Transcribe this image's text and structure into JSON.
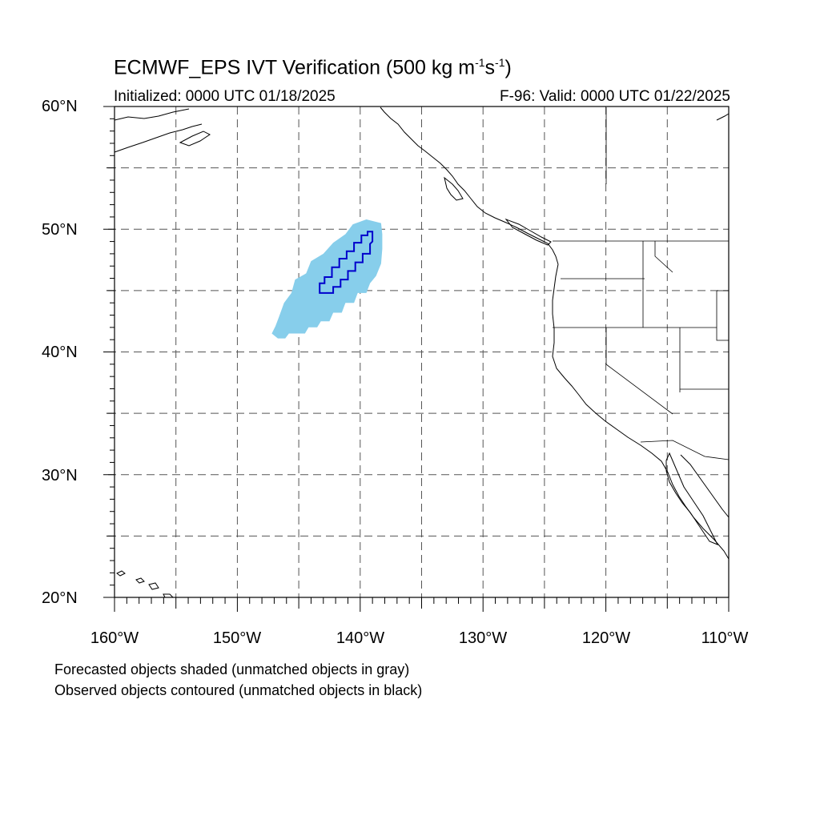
{
  "title_main": "ECMWF_EPS IVT Verification (500 kg m",
  "title_sup1": "-1",
  "title_mid": "s",
  "title_sup2": "-1",
  "title_end": ")",
  "initialized": "Initialized: 0000 UTC 01/18/2025",
  "valid": "F-96: Valid: 0000 UTC 01/22/2025",
  "map": {
    "lon_range": [
      -160,
      -110
    ],
    "lat_range": [
      20,
      60
    ],
    "grid_step_deg": 5,
    "grid_style": "dashed",
    "lat_labels": [
      "60°N",
      "50°N",
      "40°N",
      "30°N",
      "20°N"
    ],
    "lon_labels": [
      "160°W",
      "150°W",
      "140°W",
      "130°W",
      "120°W",
      "110°W"
    ],
    "forecast_object": {
      "color": "#87ceeb",
      "polygon": [
        [
          -146.7,
          41.1
        ],
        [
          -146.1,
          41.1
        ],
        [
          -145.8,
          41.5
        ],
        [
          -144.5,
          41.5
        ],
        [
          -144.2,
          42.0
        ],
        [
          -143.5,
          42.0
        ],
        [
          -143.2,
          42.5
        ],
        [
          -142.5,
          42.5
        ],
        [
          -142.2,
          43.2
        ],
        [
          -141.5,
          43.2
        ],
        [
          -141.2,
          44.0
        ],
        [
          -140.5,
          44.0
        ],
        [
          -140.2,
          44.8
        ],
        [
          -139.5,
          44.8
        ],
        [
          -139.2,
          45.6
        ],
        [
          -138.7,
          46.2
        ],
        [
          -138.3,
          47.2
        ],
        [
          -138.2,
          48.4
        ],
        [
          -138.2,
          49.6
        ],
        [
          -138.3,
          50.5
        ],
        [
          -139.5,
          50.8
        ],
        [
          -140.6,
          50.4
        ],
        [
          -141.2,
          49.6
        ],
        [
          -142.2,
          48.9
        ],
        [
          -143.0,
          48.0
        ],
        [
          -144.0,
          47.4
        ],
        [
          -144.4,
          46.4
        ],
        [
          -145.3,
          45.9
        ],
        [
          -145.6,
          44.8
        ],
        [
          -146.2,
          44.0
        ],
        [
          -146.6,
          42.9
        ],
        [
          -146.9,
          42.1
        ],
        [
          -147.2,
          41.5
        ]
      ]
    },
    "observed_object": {
      "color": "#0000cc",
      "polygon": [
        [
          -143.3,
          44.8
        ],
        [
          -143.3,
          45.6
        ],
        [
          -142.9,
          45.6
        ],
        [
          -142.9,
          46.1
        ],
        [
          -142.3,
          46.1
        ],
        [
          -142.3,
          46.9
        ],
        [
          -141.7,
          46.9
        ],
        [
          -141.7,
          47.6
        ],
        [
          -141.1,
          47.6
        ],
        [
          -141.1,
          48.2
        ],
        [
          -140.5,
          48.2
        ],
        [
          -140.5,
          48.9
        ],
        [
          -139.9,
          48.9
        ],
        [
          -139.9,
          49.5
        ],
        [
          -139.4,
          49.5
        ],
        [
          -139.4,
          49.8
        ],
        [
          -139.0,
          49.8
        ],
        [
          -139.0,
          49.0
        ],
        [
          -139.2,
          48.8
        ],
        [
          -139.2,
          48.0
        ],
        [
          -139.8,
          48.0
        ],
        [
          -139.8,
          47.3
        ],
        [
          -140.4,
          47.3
        ],
        [
          -140.4,
          46.6
        ],
        [
          -141.0,
          46.6
        ],
        [
          -141.0,
          45.9
        ],
        [
          -141.6,
          45.9
        ],
        [
          -141.6,
          45.3
        ],
        [
          -142.2,
          45.3
        ],
        [
          -142.2,
          44.8
        ]
      ]
    }
  },
  "note_forecast": "Forecasted objects shaded (unmatched objects in gray)",
  "note_observed": "Observed objects contoured (unmatched objects in black)"
}
